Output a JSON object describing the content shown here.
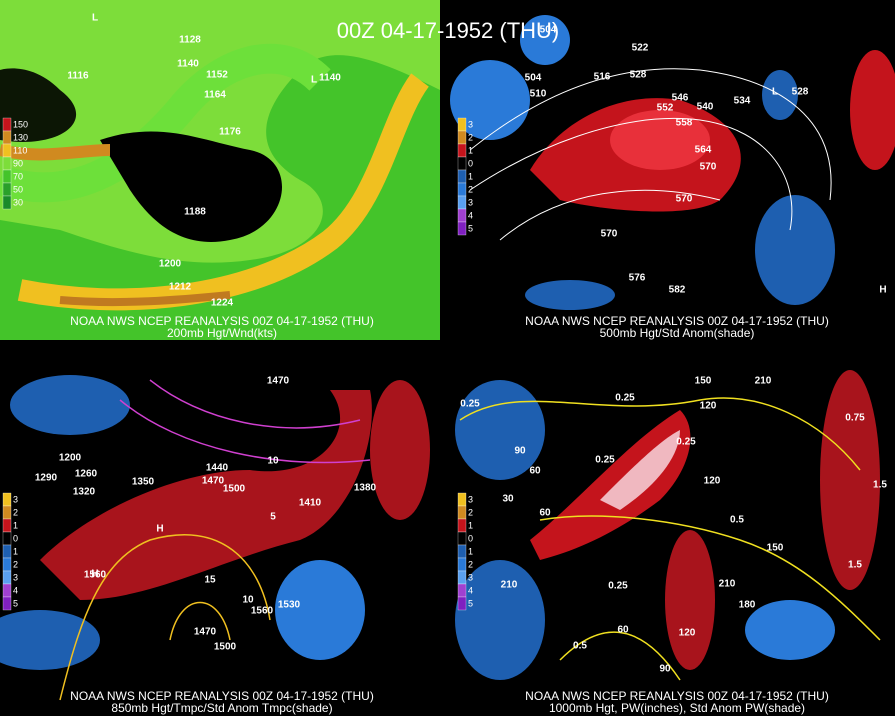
{
  "title": "00Z 04-17-1952 (THU)",
  "panels": [
    {
      "caption_line1": "NOAA NWS NCEP REANALYSIS 00Z 04-17-1952 (THU)",
      "caption_line2": "200mb Hgt/Wnd(kts)",
      "legend": [
        "150",
        "130",
        "110",
        "90",
        "70",
        "50",
        "30"
      ],
      "contour_labels": [
        "1128",
        "1140",
        "1116",
        "1152",
        "1164",
        "1140",
        "1176",
        "1188",
        "1200",
        "1212",
        "1224",
        "L",
        "L"
      ]
    },
    {
      "caption_line1": "NOAA NWS NCEP REANALYSIS 00Z 04-17-1952 (THU)",
      "caption_line2": "500mb Hgt/Std Anom(shade)",
      "legend": [
        "3",
        "2",
        "1",
        "0",
        "1",
        "2",
        "3",
        "4",
        "5"
      ],
      "contour_labels": [
        "504",
        "522",
        "504",
        "510",
        "516",
        "528",
        "546",
        "552",
        "540",
        "534",
        "528",
        "558",
        "564",
        "570",
        "570",
        "570",
        "576",
        "582",
        "H",
        "L"
      ]
    },
    {
      "caption_line1": "NOAA NWS NCEP REANALYSIS 00Z 04-17-1952 (THU)",
      "caption_line2": "850mb Hgt/Tmpc/Std Anom Tmpc(shade)",
      "legend": [
        "3",
        "2",
        "1",
        "0",
        "1",
        "2",
        "3",
        "4",
        "5"
      ],
      "contour_labels": [
        "1470",
        "1440",
        "1470",
        "1500",
        "1410",
        "1380",
        "1350",
        "1320",
        "1290",
        "1260",
        "1200",
        "1560",
        "1560",
        "1530",
        "1470",
        "1500",
        "15",
        "10",
        "10",
        "5",
        "H",
        "H"
      ]
    },
    {
      "caption_line1": "NOAA NWS NCEP REANALYSIS 00Z 04-17-1952 (THU)",
      "caption_line2": "1000mb Hgt, PW(inches), Std Anom PW(shade)",
      "legend": [
        "3",
        "2",
        "1",
        "0",
        "1",
        "2",
        "3",
        "4",
        "5"
      ],
      "contour_labels": [
        "0.25",
        "0.25",
        "0.25",
        "0.25",
        "150",
        "210",
        "120",
        "120",
        "0.5",
        "150",
        "210",
        "180",
        "120",
        "90",
        "60",
        "0.25",
        "0.5",
        "210",
        "90",
        "60",
        "30",
        "60",
        "1.5",
        "1.5",
        "0.75"
      ]
    }
  ]
}
